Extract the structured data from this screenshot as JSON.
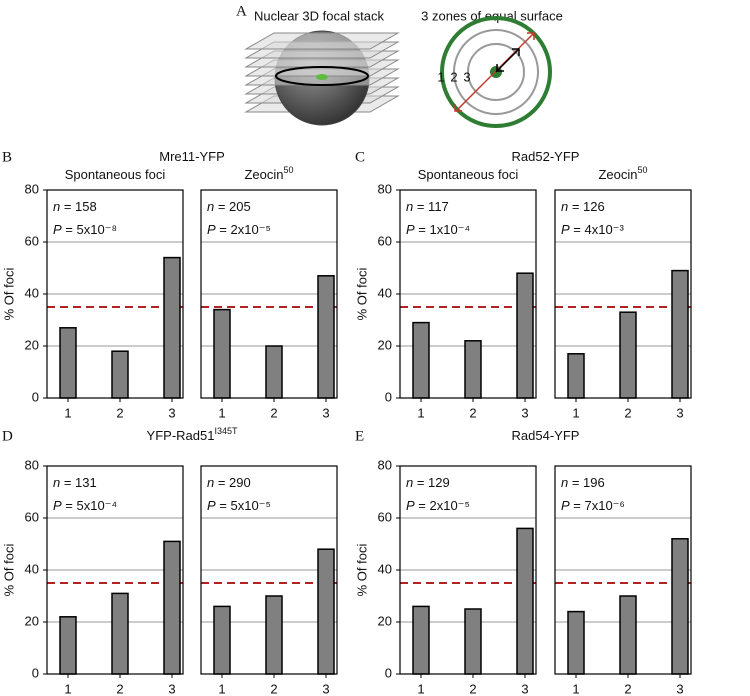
{
  "panel_A": {
    "letter": "A",
    "left_caption": "Nuclear 3D focal stack",
    "right_caption": "3 zones of equal surface",
    "zones": [
      "1",
      "2",
      "3"
    ]
  },
  "panels": [
    {
      "letter": "B",
      "title": "Mre11-YFP"
    },
    {
      "letter": "C",
      "title": "Rad52-YFP"
    },
    {
      "letter": "D",
      "title": "YFP-Rad51",
      "title_sup": "I345T"
    },
    {
      "letter": "E",
      "title": "Rad54-YFP"
    }
  ],
  "chart_data": [
    {
      "type": "bar",
      "subtitle": "Spontaneous foci",
      "ylabel": "% Of foci",
      "categories": [
        "1",
        "2",
        "3"
      ],
      "values": [
        27,
        18,
        54
      ],
      "annotations": [
        "n = 158",
        "P = 5x10⁻⁸"
      ],
      "ylim": [
        0,
        80
      ],
      "yticks": [
        0,
        20,
        40,
        60,
        80
      ],
      "grid": true,
      "reference_line": 35,
      "reference_color": "#b22222",
      "color": "#808080"
    },
    {
      "type": "bar",
      "subtitle": "Zeocin",
      "subtitle_sup": "50",
      "categories": [
        "1",
        "2",
        "3"
      ],
      "values": [
        34,
        20,
        47
      ],
      "annotations": [
        "n = 205",
        "P = 2x10⁻⁵"
      ],
      "ylim": [
        0,
        80
      ],
      "yticks": [
        0,
        20,
        40,
        60,
        80
      ],
      "grid": true,
      "reference_line": 35,
      "reference_color": "#b22222",
      "color": "#808080"
    },
    {
      "type": "bar",
      "subtitle": "Spontaneous foci",
      "ylabel": "% Of foci",
      "categories": [
        "1",
        "2",
        "3"
      ],
      "values": [
        29,
        22,
        48
      ],
      "annotations": [
        "n = 117",
        "P = 1x10⁻⁴"
      ],
      "ylim": [
        0,
        80
      ],
      "yticks": [
        0,
        20,
        40,
        60,
        80
      ],
      "grid": true,
      "reference_line": 35,
      "reference_color": "#b22222",
      "color": "#808080"
    },
    {
      "type": "bar",
      "subtitle": "Zeocin",
      "subtitle_sup": "50",
      "categories": [
        "1",
        "2",
        "3"
      ],
      "values": [
        17,
        33,
        49
      ],
      "annotations": [
        "n = 126",
        "P = 4x10⁻³"
      ],
      "ylim": [
        0,
        80
      ],
      "yticks": [
        0,
        20,
        40,
        60,
        80
      ],
      "grid": true,
      "reference_line": 35,
      "reference_color": "#b22222",
      "color": "#808080"
    },
    {
      "type": "bar",
      "ylabel": "% Of foci",
      "categories": [
        "1",
        "2",
        "3"
      ],
      "values": [
        22,
        31,
        51
      ],
      "annotations": [
        "n = 131",
        "P = 5x10⁻⁴"
      ],
      "ylim": [
        0,
        80
      ],
      "yticks": [
        0,
        20,
        40,
        60,
        80
      ],
      "grid": true,
      "reference_line": 35,
      "reference_color": "#b22222",
      "color": "#808080"
    },
    {
      "type": "bar",
      "categories": [
        "1",
        "2",
        "3"
      ],
      "values": [
        26,
        30,
        48
      ],
      "annotations": [
        "n = 290",
        "P = 5x10⁻⁵"
      ],
      "ylim": [
        0,
        80
      ],
      "yticks": [
        0,
        20,
        40,
        60,
        80
      ],
      "grid": true,
      "reference_line": 35,
      "reference_color": "#b22222",
      "color": "#808080"
    },
    {
      "type": "bar",
      "ylabel": "% Of foci",
      "categories": [
        "1",
        "2",
        "3"
      ],
      "values": [
        26,
        25,
        56
      ],
      "annotations": [
        "n = 129",
        "P = 2x10⁻⁵"
      ],
      "ylim": [
        0,
        80
      ],
      "yticks": [
        0,
        20,
        40,
        60,
        80
      ],
      "grid": true,
      "reference_line": 35,
      "reference_color": "#b22222",
      "color": "#808080"
    },
    {
      "type": "bar",
      "categories": [
        "1",
        "2",
        "3"
      ],
      "values": [
        24,
        30,
        52
      ],
      "annotations": [
        "n = 196",
        "P = 7x10⁻⁶"
      ],
      "ylim": [
        0,
        80
      ],
      "yticks": [
        0,
        20,
        40,
        60,
        80
      ],
      "grid": true,
      "reference_line": 35,
      "reference_color": "#b22222",
      "color": "#808080"
    }
  ]
}
